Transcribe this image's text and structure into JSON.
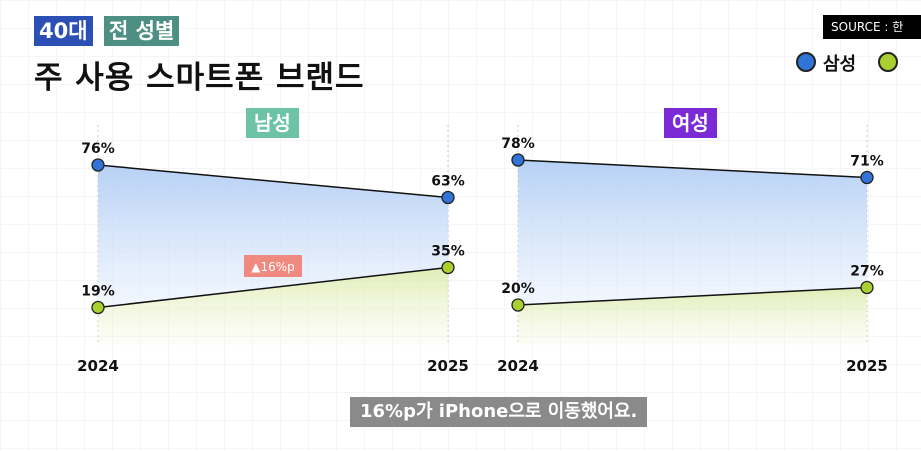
{
  "header": {
    "tag_age": "40대",
    "tag_gender": "전 성별",
    "title": "주 사용 스마트폰 브랜드",
    "source": "SOURCE : 한"
  },
  "legend": {
    "samsung": "삼성"
  },
  "colors": {
    "samsung": "#2f74d6",
    "iphone": "#a9cf31",
    "male_label": "#6cc3a8",
    "female_label": "#7b2ad6",
    "change_badge": "#f08a80"
  },
  "caption": "16%p가 iPhone으로 이동했어요.",
  "chart_data": [
    {
      "type": "line",
      "title": "남성",
      "x": [
        "2024",
        "2025"
      ],
      "ylim": [
        0,
        100
      ],
      "series": [
        {
          "name": "삼성",
          "values": [
            76,
            63
          ],
          "labels": [
            "76%",
            "63%"
          ]
        },
        {
          "values": [
            19,
            35
          ],
          "labels": [
            "19%",
            "35%"
          ]
        }
      ],
      "annotation": "▲16%p"
    },
    {
      "type": "line",
      "title": "여성",
      "x": [
        "2024",
        "2025"
      ],
      "ylim": [
        0,
        100
      ],
      "series": [
        {
          "name": "삼성",
          "values": [
            78,
            71
          ],
          "labels": [
            "78%",
            "71%"
          ]
        },
        {
          "values": [
            20,
            27
          ],
          "labels": [
            "20%",
            "27%"
          ]
        }
      ]
    }
  ]
}
